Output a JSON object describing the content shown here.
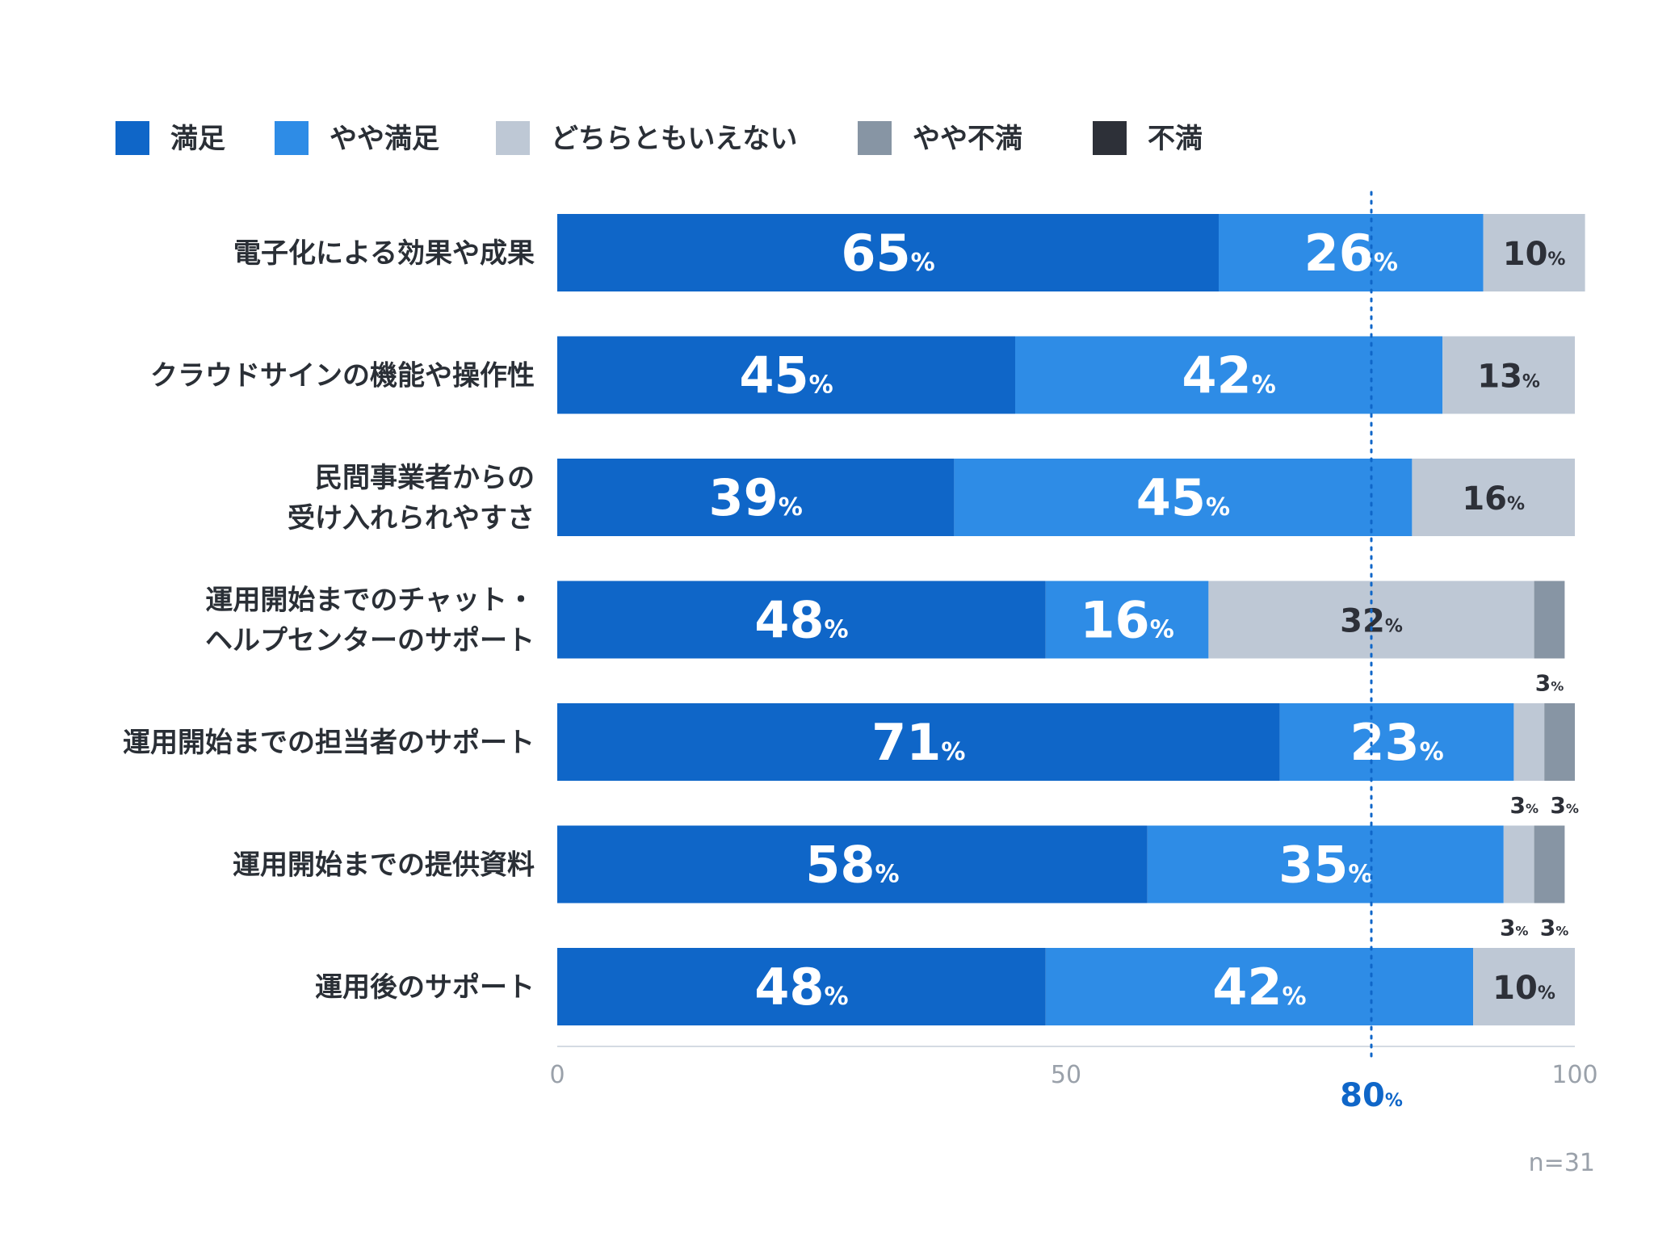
{
  "chart_data": {
    "type": "bar",
    "orientation": "horizontal",
    "stacked": true,
    "legend_position": "top-left",
    "legend": [
      {
        "name": "満足",
        "color": "#0f66c8"
      },
      {
        "name": "やや満足",
        "color": "#2e8ce6"
      },
      {
        "name": "どちらともいえない",
        "color": "#bec8d5"
      },
      {
        "name": "やや不満",
        "color": "#8795a4"
      },
      {
        "name": "不満",
        "color": "#2d3038"
      }
    ],
    "categories": [
      [
        "電子化による効果や成果"
      ],
      [
        "クラウドサインの機能や操作性"
      ],
      [
        "民間事業者からの",
        "受け入れられやすさ"
      ],
      [
        "運用開始までのチャット・",
        "ヘルプセンターのサポート"
      ],
      [
        "運用開始までの担当者のサポート"
      ],
      [
        "運用開始までの提供資料"
      ],
      [
        "運用後のサポート"
      ]
    ],
    "series": [
      {
        "name": "満足",
        "color": "#0f66c8",
        "values": [
          65,
          45,
          39,
          48,
          71,
          58,
          48
        ]
      },
      {
        "name": "やや満足",
        "color": "#2e8ce6",
        "values": [
          26,
          42,
          45,
          16,
          23,
          35,
          42
        ]
      },
      {
        "name": "どちらともいえない",
        "color": "#bec8d5",
        "values": [
          10,
          13,
          16,
          32,
          3,
          3,
          10
        ]
      },
      {
        "name": "やや不満",
        "color": "#8795a4",
        "values": [
          0,
          0,
          0,
          3,
          3,
          3,
          0
        ]
      },
      {
        "name": "不満",
        "color": "#2d3038",
        "values": [
          0,
          0,
          0,
          0,
          0,
          0,
          0
        ]
      }
    ],
    "percent_sign": "%",
    "xlim": [
      0,
      100
    ],
    "x_ticks": [
      "0",
      "50",
      "100"
    ],
    "reference_line": {
      "value": 80,
      "label": "80",
      "color": "#0f66c8"
    },
    "sample_size": "n=31"
  }
}
